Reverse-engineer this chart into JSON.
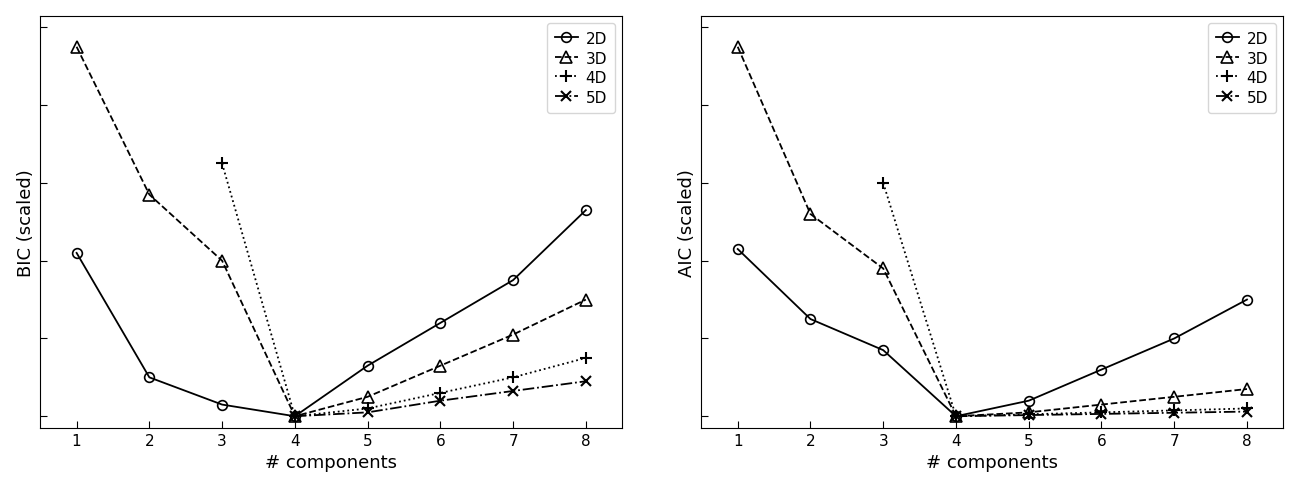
{
  "x": [
    1,
    2,
    3,
    4,
    5,
    6,
    7,
    8
  ],
  "bic_2d": [
    0.42,
    0.1,
    0.03,
    0.0,
    0.13,
    0.24,
    0.35,
    0.53
  ],
  "bic_3d": [
    0.95,
    0.57,
    0.4,
    0.0,
    0.05,
    0.13,
    0.21,
    0.3
  ],
  "bic_4d": [
    null,
    null,
    0.65,
    0.0,
    0.02,
    0.06,
    0.1,
    0.15
  ],
  "bic_5d": [
    null,
    null,
    null,
    0.0,
    0.01,
    0.04,
    0.065,
    0.09
  ],
  "aic_2d": [
    0.43,
    0.25,
    0.17,
    0.0,
    0.04,
    0.12,
    0.2,
    0.3
  ],
  "aic_3d": [
    0.95,
    0.52,
    0.38,
    0.0,
    0.01,
    0.03,
    0.05,
    0.07
  ],
  "aic_4d": [
    null,
    null,
    0.6,
    0.0,
    0.005,
    0.01,
    0.015,
    0.02
  ],
  "aic_5d": [
    null,
    null,
    null,
    0.0,
    0.003,
    0.006,
    0.009,
    0.012
  ],
  "ylabel_bic": "BIC (scaled)",
  "ylabel_aic": "AIC (scaled)",
  "xlabel": "# components",
  "legend_labels": [
    "2D",
    "3D",
    "4D",
    "5D"
  ],
  "styles_2d": {
    "ls": "-",
    "marker": "o",
    "ms": 7,
    "mew": 1.2,
    "mfc": "none",
    "lw": 1.3
  },
  "styles_3d": {
    "ls": "--",
    "marker": "^",
    "ms": 8,
    "mew": 1.2,
    "mfc": "none",
    "lw": 1.3
  },
  "styles_4d": {
    "ls": ":",
    "marker": "+",
    "ms": 9,
    "mew": 1.5,
    "mfc": "black",
    "lw": 1.3
  },
  "styles_5d": {
    "ls": "-.",
    "marker": "x",
    "ms": 7,
    "mew": 1.5,
    "mfc": "black",
    "lw": 1.3
  },
  "color": "black",
  "xlim": [
    0.5,
    8.5
  ],
  "ylim": [
    -0.03,
    1.03
  ],
  "xticks": [
    1,
    2,
    3,
    4,
    5,
    6,
    7,
    8
  ],
  "figsize": [
    13.0,
    4.89
  ],
  "dpi": 100,
  "legend_fontsize": 11,
  "axis_label_fontsize": 13,
  "tick_fontsize": 11
}
